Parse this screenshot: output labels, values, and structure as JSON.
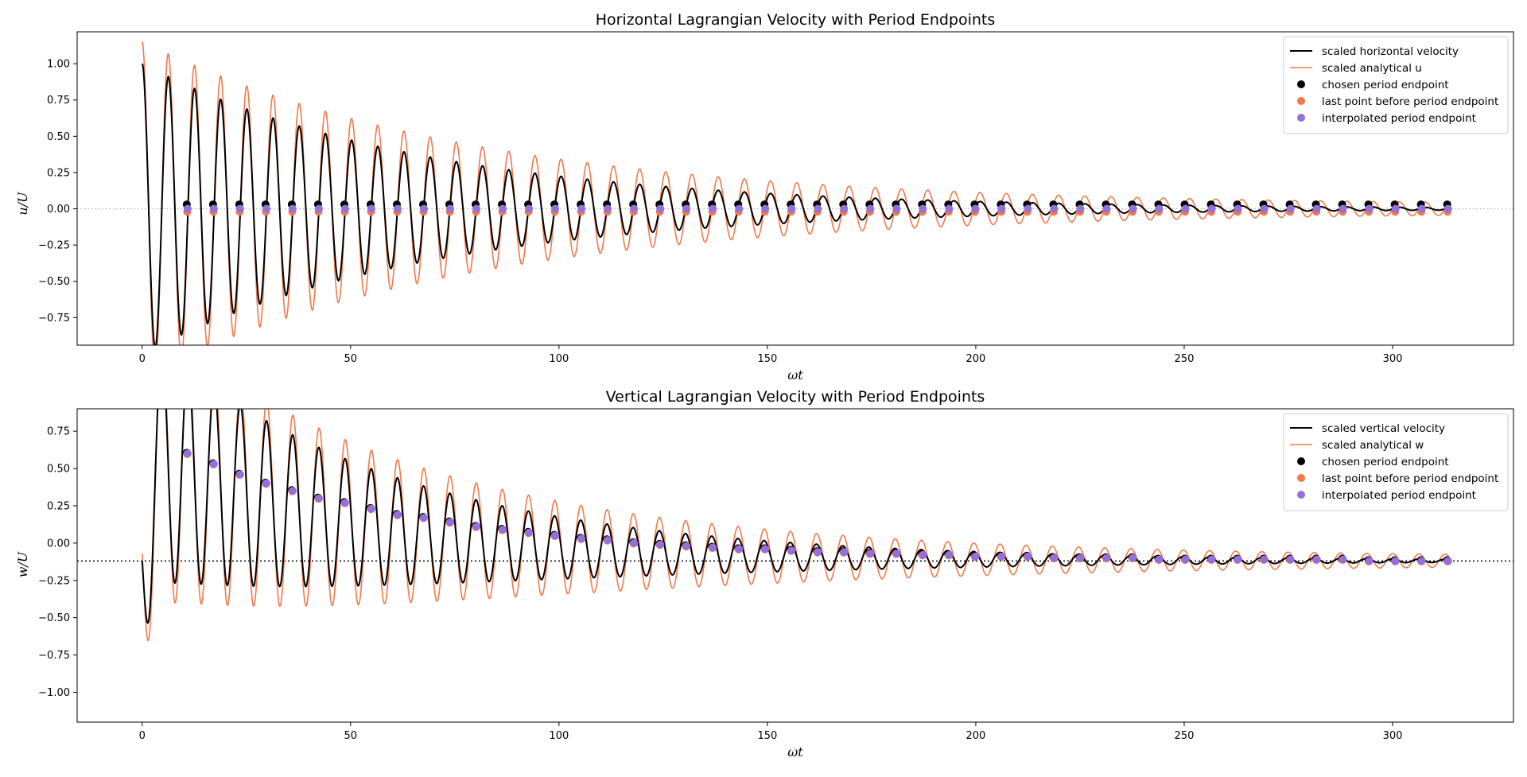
{
  "colors": {
    "measured": "#000000",
    "analytical": "#f4794a",
    "chosen": "#000000",
    "last_before": "#f4794a",
    "interpolated": "#9370db",
    "zero_line_top": "#b0b0b0",
    "zero_line_bottom": "#000000"
  },
  "chart_data": [
    {
      "type": "line",
      "title": "Horizontal Lagrangian Velocity with Period Endpoints",
      "xlabel": "ωt",
      "ylabel": "u/U",
      "xlim": [
        -15.6,
        329
      ],
      "ylim": [
        -0.94,
        1.22
      ],
      "xticks": [
        0,
        50,
        100,
        150,
        200,
        250,
        300
      ],
      "yticks": [
        -0.75,
        -0.5,
        -0.25,
        0.0,
        0.25,
        0.5,
        0.75,
        1.0
      ],
      "ytick_labels": [
        "−0.75",
        "−0.50",
        "−0.25",
        "0.00",
        "0.25",
        "0.50",
        "0.75",
        "1.00"
      ],
      "legend_position": "top-right",
      "legend": [
        "scaled horizontal velocity",
        "scaled analytical u",
        "chosen period endpoint",
        "last point before period endpoint",
        "interpolated period endpoint"
      ],
      "model": {
        "x_max": 313.5,
        "period": 6.283,
        "amplitude": 1.0,
        "decay": 0.0149,
        "analytical_amplitude": 1.13,
        "analytical_decay": 0.0126,
        "analytical_floor": 0.023,
        "offset": 0.0
      },
      "reference_line_y": 0.0,
      "endpoints": {
        "x": [
          10.9,
          17.2,
          23.5,
          29.8,
          36.1,
          42.4,
          48.7,
          55.0,
          61.3,
          67.6,
          73.9,
          80.2,
          86.5,
          92.8,
          99.1,
          105.4,
          111.7,
          118.0,
          124.3,
          130.6,
          136.9,
          143.2,
          149.5,
          155.8,
          162.1,
          168.4,
          174.7,
          181.0,
          187.3,
          193.6,
          199.9,
          206.2,
          212.5,
          218.8,
          225.1,
          231.4,
          237.7,
          244.0,
          250.3,
          256.6,
          262.9,
          269.2,
          275.5,
          281.8,
          288.1,
          294.4,
          300.7,
          307.0,
          313.3
        ],
        "y": [
          0.0,
          0.0,
          0.0,
          0.0,
          0.0,
          0.0,
          0.0,
          0.0,
          0.0,
          0.0,
          0.0,
          0.0,
          0.0,
          0.0,
          0.0,
          0.0,
          0.0,
          0.0,
          0.0,
          0.0,
          0.0,
          0.0,
          0.0,
          0.0,
          0.0,
          0.0,
          0.0,
          0.0,
          0.0,
          0.0,
          0.0,
          0.0,
          0.0,
          0.0,
          0.0,
          0.0,
          0.0,
          0.0,
          0.0,
          0.0,
          0.0,
          0.0,
          0.0,
          0.0,
          0.0,
          0.0,
          0.0,
          0.0,
          0.0
        ]
      }
    },
    {
      "type": "line",
      "title": "Vertical Lagrangian Velocity with Period Endpoints",
      "xlabel": "ωt",
      "ylabel": "w/U",
      "xlim": [
        -15.6,
        329
      ],
      "ylim": [
        -1.2,
        0.9
      ],
      "xticks": [
        0,
        50,
        100,
        150,
        200,
        250,
        300
      ],
      "yticks": [
        -1.0,
        -0.75,
        -0.5,
        -0.25,
        0.0,
        0.25,
        0.5,
        0.75
      ],
      "ytick_labels": [
        "−1.00",
        "−0.75",
        "−0.50",
        "−0.25",
        "0.00",
        "0.25",
        "0.50",
        "0.75"
      ],
      "legend_position": "top-right",
      "legend": [
        "scaled vertical velocity",
        "scaled analytical w",
        "chosen period endpoint",
        "last point before period endpoint",
        "interpolated period endpoint"
      ],
      "model": {
        "x_max": 313.5,
        "period": 6.283,
        "amplitude": 0.84,
        "decay": 0.0139,
        "analytical_amplitude": 0.95,
        "analytical_decay": 0.0118,
        "analytical_floor": 0.02,
        "offset": -0.12,
        "settle": 0.0125
      },
      "reference_line_y": -0.12,
      "endpoints": {
        "x": [
          10.9,
          17.2,
          23.5,
          29.8,
          36.1,
          42.4,
          48.7,
          55.0,
          61.3,
          67.6,
          73.9,
          80.2,
          86.5,
          92.8,
          99.1,
          105.4,
          111.7,
          118.0,
          124.3,
          130.6,
          136.9,
          143.2,
          149.5,
          155.8,
          162.1,
          168.4,
          174.7,
          181.0,
          187.3,
          193.6,
          199.9,
          206.2,
          212.5,
          218.8,
          225.1,
          231.4,
          237.7,
          244.0,
          250.3,
          256.6,
          262.9,
          269.2,
          275.5,
          281.8,
          288.1,
          294.4,
          300.7,
          307.0,
          313.3
        ],
        "y": [
          0.6,
          0.53,
          0.46,
          0.4,
          0.35,
          0.3,
          0.27,
          0.23,
          0.19,
          0.17,
          0.14,
          0.11,
          0.09,
          0.07,
          0.05,
          0.03,
          0.02,
          0.0,
          -0.01,
          -0.02,
          -0.03,
          -0.04,
          -0.04,
          -0.05,
          -0.06,
          -0.06,
          -0.07,
          -0.07,
          -0.08,
          -0.08,
          -0.09,
          -0.09,
          -0.09,
          -0.1,
          -0.1,
          -0.1,
          -0.1,
          -0.11,
          -0.11,
          -0.11,
          -0.11,
          -0.11,
          -0.11,
          -0.11,
          -0.11,
          -0.12,
          -0.12,
          -0.12,
          -0.12
        ]
      }
    }
  ]
}
